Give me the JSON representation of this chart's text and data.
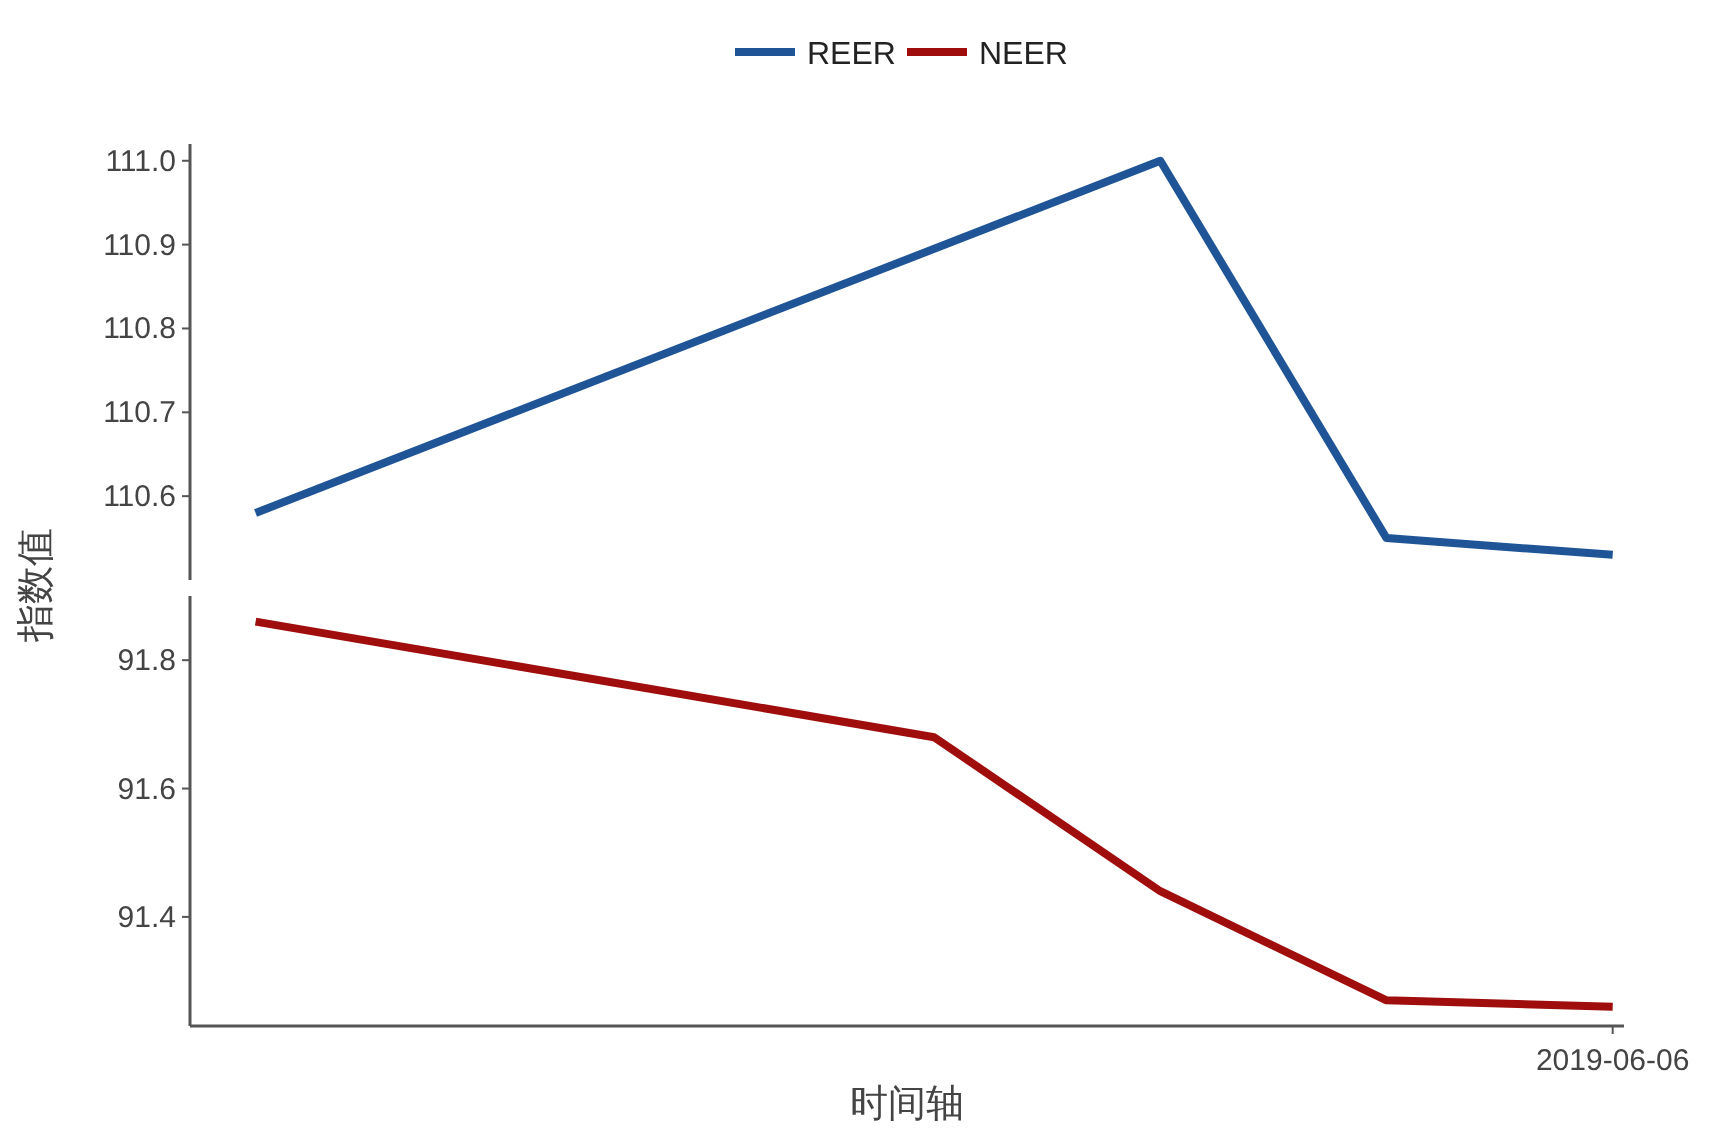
{
  "chart_data": [
    {
      "type": "line",
      "ylabel": "指数值",
      "legend": "top",
      "grid": false,
      "tick_labels": "y",
      "line_style": "solid",
      "marker": "none",
      "categories": [
        null,
        null,
        null,
        null,
        null,
        null,
        null
      ],
      "ylim": [
        110.5,
        111.02
      ],
      "yticks": [
        110.6,
        110.7,
        110.8,
        110.9,
        {
          "value": 111.0,
          "label": "111.0"
        }
      ],
      "series": [
        {
          "name": "REER",
          "color": "#1f5597",
          "values": [
            110.58,
            null,
            null,
            null,
            111.0,
            110.55,
            110.53
          ]
        }
      ]
    },
    {
      "type": "line",
      "xlabel": "时间轴",
      "legend": "top",
      "grid": false,
      "line_style": "solid",
      "marker": "none",
      "categories": [
        null,
        null,
        null,
        null,
        null,
        null,
        "2019-06-06"
      ],
      "ylim": [
        91.23,
        91.9
      ],
      "yticks": [
        91.4,
        91.6,
        91.8
      ],
      "series": [
        {
          "name": "NEER",
          "color": "#a00d0d",
          "values": [
            91.86,
            null,
            null,
            91.68,
            91.44,
            91.27,
            91.26
          ]
        }
      ]
    }
  ]
}
